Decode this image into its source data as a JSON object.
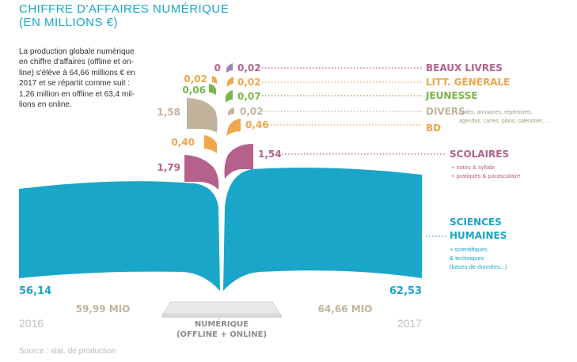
{
  "title_lines": [
    "CHIFFRE D'AFFAIRES NUMÉRIQUE",
    "(EN MILLIONS €)"
  ],
  "intro_lines": [
    "La production globale numérique",
    "en chiffre d'affaires (offline et on-",
    "line) s'élève à 64,66 millions € en",
    "2017 et se répartit comme suit :",
    "1,26 million en offline et 63,4 mil-",
    "lions en online."
  ],
  "source": "Source : stat. de production",
  "colors": {
    "blue": "#1aa6c9",
    "purple": "#b4628c",
    "orange": "#f0a64a",
    "green": "#7ab648",
    "gray": "#c2b39c",
    "lavender": "#9a86b4",
    "year_gray": "#c0c0c0"
  },
  "chart_data": {
    "type": "bar",
    "categories": [
      "SCIENCES HUMAINES",
      "SCOLAIRES",
      "BD",
      "DIVERS",
      "JEUNESSE",
      "LITT. GÉNÉRALE",
      "BEAUX LIVRES"
    ],
    "series": [
      {
        "name": "2016",
        "values": [
          56.14,
          1.79,
          0.4,
          1.58,
          0.06,
          0.02,
          0
        ]
      },
      {
        "name": "2017",
        "values": [
          62.53,
          1.54,
          0.46,
          0.02,
          0.07,
          0.02,
          0.02
        ]
      }
    ],
    "value_labels_2016": [
      "56,14",
      "1,79",
      "0,40",
      "1,58",
      "0,06",
      "0,02",
      "0"
    ],
    "value_labels_2017": [
      "62,53",
      "1,54",
      "0,46",
      "0,02",
      "0,07",
      "0,02",
      "0,02"
    ],
    "label_colors": [
      "#1aa6c9",
      "#b4628c",
      "#f0a64a",
      "#c2b39c",
      "#7ab648",
      "#f0a64a",
      "#b4628c"
    ],
    "sublabels": {
      "SCIENCES HUMAINES": [
        "SCIENCES",
        "HUMAINES",
        "+ scientifiques",
        "& techniques",
        "(bases de données...)"
      ],
      "SCOLAIRES": [
        "+ notes & syllabi",
        "+ pratiques & parascolaire"
      ],
      "DIVERS": [
        "codes, annuaires, repertoires,",
        "agendas, cartes, plans, calendrier, ..."
      ]
    },
    "totals": {
      "2016": {
        "year": "2016",
        "total": "59,99 MIO"
      },
      "2017": {
        "year": "2017",
        "total": "64,66 MIO"
      }
    },
    "center_label": [
      "NUMÉRIQUE",
      "(OFFLINE + ONLINE)"
    ]
  }
}
